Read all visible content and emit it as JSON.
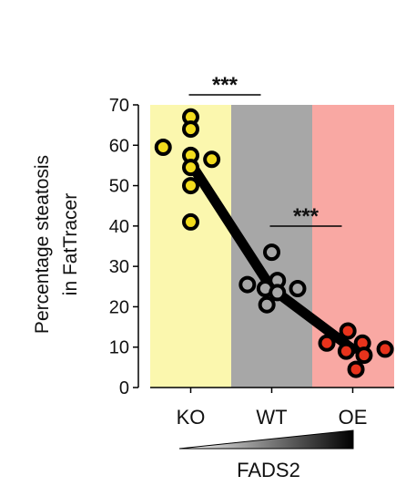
{
  "chart_data": {
    "type": "scatter",
    "ylabel_lines": [
      "Percentage steatosis",
      "in FatTracer"
    ],
    "ylim": [
      0,
      70
    ],
    "yticks": [
      0,
      10,
      20,
      30,
      40,
      50,
      60,
      70
    ],
    "categories": [
      "KO",
      "WT",
      "OE"
    ],
    "band_colors": [
      "#fbf7ae",
      "#a7a7a7",
      "#f9a8a3"
    ],
    "point_colors": [
      "#f2dc1d",
      "#a7a7a7",
      "#e8331c"
    ],
    "point_stroke": "#000000",
    "groups": [
      {
        "category": "KO",
        "points": [
          {
            "x": 0.0,
            "y": 67
          },
          {
            "x": 0.0,
            "y": 64
          },
          {
            "x": -0.34,
            "y": 59.5
          },
          {
            "x": 0.0,
            "y": 57.5
          },
          {
            "x": 0.0,
            "y": 54.5
          },
          {
            "x": 0.26,
            "y": 56.5
          },
          {
            "x": 0.0,
            "y": 50
          },
          {
            "x": 0.0,
            "y": 41
          }
        ]
      },
      {
        "category": "WT",
        "points": [
          {
            "x": 0.0,
            "y": 33.5
          },
          {
            "x": -0.3,
            "y": 25.5
          },
          {
            "x": -0.08,
            "y": 24.5
          },
          {
            "x": 0.07,
            "y": 26.5
          },
          {
            "x": 0.07,
            "y": 23.5
          },
          {
            "x": 0.32,
            "y": 24.5
          },
          {
            "x": -0.06,
            "y": 20.5
          }
        ]
      },
      {
        "category": "OE",
        "points": [
          {
            "x": -0.06,
            "y": 14
          },
          {
            "x": -0.32,
            "y": 11
          },
          {
            "x": -0.08,
            "y": 9
          },
          {
            "x": 0.12,
            "y": 11
          },
          {
            "x": 0.14,
            "y": 8
          },
          {
            "x": 0.4,
            "y": 9.5
          },
          {
            "x": 0.04,
            "y": 4.5
          }
        ]
      }
    ],
    "trend": [
      {
        "category": "KO",
        "y": 55.5
      },
      {
        "category": "WT",
        "y": 24.5
      },
      {
        "category": "OE",
        "y": 9.5
      }
    ],
    "significance": [
      {
        "from": "KO",
        "to": "WT",
        "label": "***"
      },
      {
        "from": "WT",
        "to": "OE",
        "label": "***"
      }
    ],
    "gradient_label": "FADS2",
    "grid": false
  }
}
